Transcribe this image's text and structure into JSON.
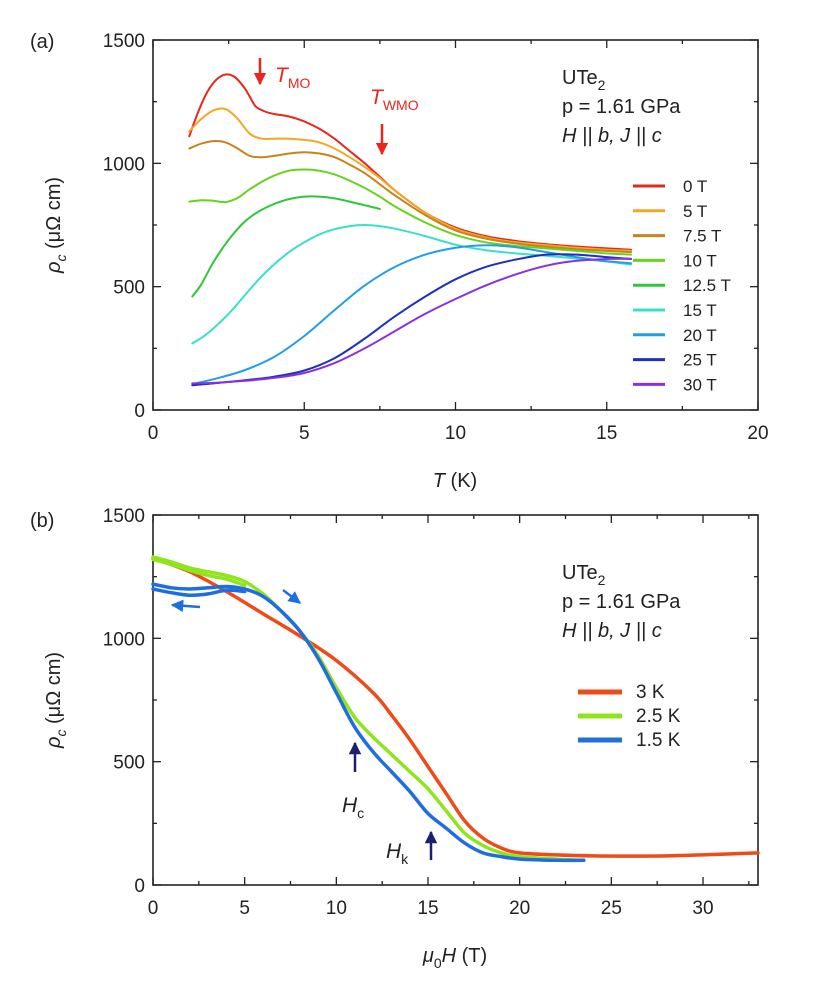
{
  "chart_data": [
    {
      "panel": "(a)",
      "type": "line",
      "xlabel_var": "T",
      "xlabel_unit": " (K)",
      "ylabel_var": "ρ",
      "ylabel_sub": "c",
      "ylabel_unit": " (μΩ cm)",
      "xlim": [
        0,
        20
      ],
      "ylim": [
        0,
        1500
      ],
      "xticks": [
        0,
        5,
        10,
        15,
        20
      ],
      "yticks": [
        0,
        500,
        1000,
        1500
      ],
      "info": {
        "material": "UTe",
        "material_sub": "2",
        "pressure": "p = 1.61 GPa",
        "config": "H || b,  J || c"
      },
      "annotations": [
        {
          "var": "T",
          "sub": "MO",
          "x": 3.4,
          "y": 1360,
          "color": "#e8261c"
        },
        {
          "var": "T",
          "sub": "WMO",
          "x": 7.5,
          "y": 1030,
          "color": "#e8261c"
        }
      ],
      "series": [
        {
          "name": "0 T",
          "color": "#e8261c",
          "x": [
            1.2,
            1.5,
            1.8,
            2.1,
            2.4,
            2.7,
            3.0,
            3.2,
            3.4,
            3.7,
            4.0,
            4.5,
            5.0,
            5.5,
            6.0,
            6.5,
            7.0,
            7.5,
            8.0,
            9.0,
            10.0,
            11.0,
            12.0,
            13.0,
            14.0,
            15.0,
            15.8
          ],
          "y": [
            1110,
            1210,
            1290,
            1340,
            1360,
            1350,
            1310,
            1270,
            1230,
            1210,
            1200,
            1190,
            1170,
            1140,
            1100,
            1050,
            1000,
            945,
            890,
            800,
            740,
            705,
            685,
            672,
            663,
            655,
            650
          ]
        },
        {
          "name": "5 T",
          "color": "#f5a623",
          "x": [
            1.2,
            1.6,
            2.0,
            2.4,
            2.8,
            3.2,
            3.6,
            4.0,
            4.5,
            5.0,
            5.5,
            6.0,
            6.5,
            7.0,
            7.5,
            8.0,
            9.0,
            10.0,
            11.0,
            12.0,
            13.0,
            14.0,
            15.0,
            15.8
          ],
          "y": [
            1130,
            1180,
            1215,
            1220,
            1180,
            1120,
            1100,
            1100,
            1100,
            1095,
            1085,
            1060,
            1025,
            985,
            940,
            890,
            800,
            735,
            700,
            680,
            668,
            658,
            650,
            645
          ]
        },
        {
          "name": "7.5 T",
          "color": "#c8831a",
          "x": [
            1.2,
            1.6,
            2.0,
            2.4,
            2.8,
            3.2,
            3.6,
            4.0,
            4.5,
            5.0,
            5.5,
            6.0,
            6.5,
            7.0,
            7.5,
            8.0,
            9.0,
            10.0,
            11.0,
            12.0,
            13.0,
            14.0,
            15.0,
            15.8
          ],
          "y": [
            1060,
            1080,
            1090,
            1085,
            1060,
            1030,
            1025,
            1030,
            1040,
            1045,
            1040,
            1025,
            995,
            960,
            915,
            870,
            790,
            728,
            695,
            675,
            662,
            652,
            645,
            640
          ]
        },
        {
          "name": "10 T",
          "color": "#66d41c",
          "x": [
            1.2,
            1.6,
            2.0,
            2.4,
            2.8,
            3.2,
            3.6,
            4.0,
            4.5,
            5.0,
            5.5,
            6.0,
            6.5,
            7.0,
            7.5,
            8.0,
            9.0,
            10.0,
            11.0,
            12.0,
            13.0,
            14.0,
            15.0,
            15.8
          ],
          "y": [
            845,
            850,
            848,
            843,
            860,
            895,
            925,
            950,
            970,
            975,
            970,
            955,
            930,
            900,
            865,
            825,
            760,
            710,
            680,
            665,
            655,
            645,
            635,
            630
          ]
        },
        {
          "name": "12.5 T",
          "color": "#2ec73a",
          "x": [
            1.3,
            1.6,
            2.0,
            2.5,
            3.0,
            3.5,
            4.0,
            4.5,
            5.0,
            5.5,
            6.0,
            6.5,
            7.0,
            7.5
          ],
          "y": [
            460,
            510,
            600,
            690,
            760,
            805,
            835,
            855,
            865,
            865,
            858,
            845,
            830,
            815
          ]
        },
        {
          "name": "15 T",
          "color": "#37e0c8",
          "x": [
            1.3,
            1.8,
            2.5,
            3.0,
            3.5,
            4.0,
            4.5,
            5.0,
            5.5,
            6.0,
            6.5,
            7.0,
            7.5,
            8.0,
            9.0,
            10.0,
            11.0,
            12.0,
            13.0,
            14.0,
            15.0,
            15.8
          ],
          "y": [
            270,
            310,
            390,
            460,
            530,
            590,
            640,
            680,
            712,
            733,
            745,
            750,
            745,
            735,
            705,
            670,
            648,
            635,
            625,
            614,
            602,
            590
          ]
        },
        {
          "name": "20 T",
          "color": "#1fa0e6",
          "x": [
            1.3,
            2.0,
            3.0,
            4.0,
            5.0,
            6.0,
            7.0,
            8.0,
            9.0,
            10.0,
            11.0,
            12.0,
            13.0,
            14.0,
            15.0,
            15.8
          ],
          "y": [
            105,
            125,
            160,
            215,
            300,
            405,
            505,
            580,
            630,
            658,
            668,
            660,
            640,
            620,
            603,
            595
          ]
        },
        {
          "name": "25 T",
          "color": "#1f2fc0",
          "x": [
            1.3,
            2.0,
            3.0,
            4.0,
            5.0,
            6.0,
            7.0,
            8.0,
            9.0,
            10.0,
            11.0,
            12.0,
            13.0,
            14.0,
            15.0,
            15.8
          ],
          "y": [
            100,
            108,
            120,
            135,
            160,
            210,
            290,
            380,
            460,
            530,
            580,
            610,
            630,
            630,
            620,
            612
          ]
        },
        {
          "name": "30 T",
          "color": "#8b30e0",
          "x": [
            1.3,
            2.0,
            3.0,
            4.0,
            5.0,
            6.0,
            7.0,
            8.0,
            9.0,
            10.0,
            11.0,
            12.0,
            13.0,
            14.0,
            15.0,
            15.8
          ],
          "y": [
            108,
            110,
            118,
            130,
            150,
            190,
            250,
            320,
            390,
            450,
            505,
            550,
            585,
            605,
            612,
            613
          ]
        }
      ]
    },
    {
      "panel": "(b)",
      "type": "line",
      "xlabel_var": "μ",
      "xlabel_sub": "0",
      "xlabel_var2": "H",
      "xlabel_unit": " (T)",
      "ylabel_var": "ρ",
      "ylabel_sub": "c",
      "ylabel_unit": " (μΩ cm)",
      "xlim": [
        0,
        33
      ],
      "ylim": [
        0,
        1500
      ],
      "xticks": [
        0,
        5,
        10,
        15,
        20,
        25,
        30
      ],
      "yticks": [
        0,
        500,
        1000,
        1500
      ],
      "info": {
        "material": "UTe",
        "material_sub": "2",
        "pressure": "p = 1.61 GPa",
        "config": "H || b,  J || c"
      },
      "annotations": [
        {
          "var": "H",
          "sub": "c",
          "x": 11.0,
          "y": 500,
          "color": "#1a1f6e"
        },
        {
          "var": "H",
          "sub": "k",
          "x": 15.0,
          "y": 200,
          "color": "#1a1f6e"
        }
      ],
      "series": [
        {
          "name": "3 K",
          "color": "#f04a18",
          "x": [
            0,
            2,
            4,
            6,
            8,
            10,
            12,
            13,
            14,
            15,
            16,
            17,
            18,
            19,
            20,
            22,
            24,
            26,
            28,
            30,
            33
          ],
          "y": [
            1325,
            1270,
            1190,
            1100,
            1010,
            910,
            780,
            690,
            590,
            480,
            370,
            260,
            190,
            150,
            130,
            122,
            118,
            117,
            118,
            122,
            130
          ]
        },
        {
          "name": "2.5 K",
          "color": "#8fe51c",
          "x": [
            0,
            1,
            2,
            3,
            4,
            5,
            6,
            7,
            8,
            9,
            10,
            11,
            12,
            13,
            14,
            15,
            16,
            17,
            18,
            19,
            20,
            22,
            23.5
          ],
          "y": [
            1330,
            1310,
            1285,
            1270,
            1255,
            1230,
            1180,
            1110,
            1030,
            930,
            800,
            680,
            600,
            530,
            460,
            390,
            300,
            210,
            160,
            130,
            115,
            105,
            100
          ]
        },
        {
          "name": "1.5 K",
          "color": "#1e6ee0",
          "x": [
            0,
            1,
            2,
            3,
            4,
            5,
            6,
            7,
            8,
            9,
            10,
            11,
            12,
            13,
            14,
            15,
            16,
            17,
            18,
            19,
            20,
            22,
            23.5
          ],
          "y": [
            1220,
            1205,
            1200,
            1205,
            1210,
            1200,
            1170,
            1110,
            1030,
            920,
            780,
            640,
            540,
            460,
            380,
            290,
            230,
            170,
            130,
            115,
            105,
            100,
            100
          ]
        },
        {
          "name": "1.5 K (down sweep)",
          "legend": false,
          "color": "#1e6ee0",
          "x": [
            0,
            1,
            2,
            3,
            4,
            5
          ],
          "y": [
            1200,
            1185,
            1175,
            1180,
            1195,
            1190
          ]
        },
        {
          "name": "2.5 K (down sweep)",
          "legend": false,
          "color": "#8fe51c",
          "x": [
            0,
            1,
            2,
            3,
            4,
            5
          ],
          "y": [
            1320,
            1300,
            1275,
            1255,
            1240,
            1215
          ]
        }
      ],
      "sweep_arrows": [
        {
          "direction": "up",
          "color": "#1e6ee0"
        },
        {
          "direction": "down",
          "color": "#1e6ee0"
        }
      ]
    }
  ]
}
